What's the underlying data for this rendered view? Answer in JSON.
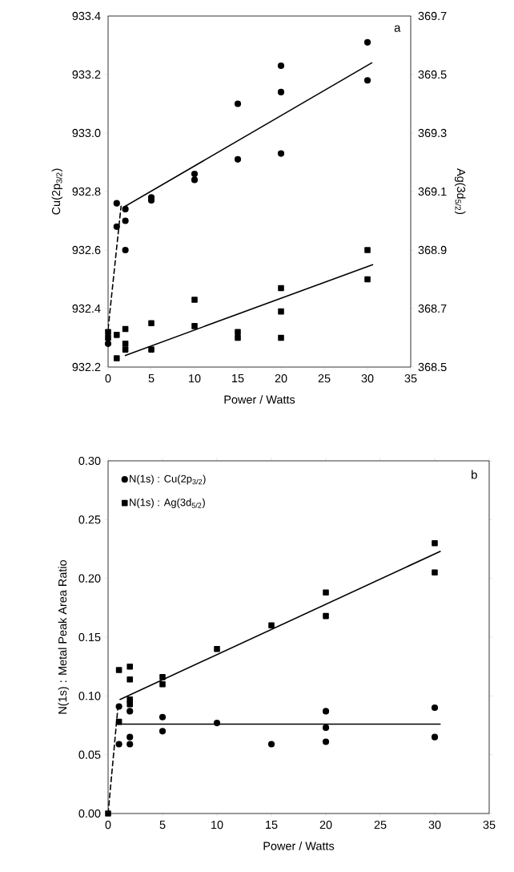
{
  "chart_data": [
    {
      "type": "scatter",
      "xlabel": "Power / Watts",
      "ylabel": "Cu(2p$_{3/2}$)",
      "y2label": "Ag(3d$_{5/2}$)",
      "annotations": [
        "a"
      ],
      "xlim": [
        0,
        35
      ],
      "xticks": [
        0,
        5,
        10,
        15,
        20,
        25,
        30,
        35
      ],
      "ylim": [
        932.2,
        933.4
      ],
      "yticks": [
        {
          "value": 932.2,
          "label": "932.2"
        },
        {
          "value": 932.4,
          "label": "932.4"
        },
        {
          "value": 932.6,
          "label": "932.6"
        },
        {
          "value": 932.8,
          "label": "932.8"
        },
        {
          "value": 933.0,
          "label": "933.0"
        },
        {
          "value": 933.2,
          "label": "933.2"
        },
        {
          "value": 933.4,
          "label": "933.4"
        }
      ],
      "y2lim": [
        368.5,
        369.7
      ],
      "y2ticks": [
        {
          "value": 368.5,
          "label": "368.5"
        },
        {
          "value": 368.7,
          "label": "368.7"
        },
        {
          "value": 368.9,
          "label": "368.9"
        },
        {
          "value": 369.1,
          "label": "369.1"
        },
        {
          "value": 369.3,
          "label": "369.3"
        },
        {
          "value": 369.5,
          "label": "369.5"
        },
        {
          "value": 369.7,
          "label": "369.7"
        }
      ],
      "series": [
        {
          "marker": "circle",
          "color": "#000000",
          "x": [
            0,
            1,
            1,
            2,
            2,
            2,
            5,
            5,
            10,
            10,
            15,
            15,
            20,
            20,
            20,
            30,
            30
          ],
          "values": [
            932.28,
            932.76,
            932.68,
            932.74,
            932.7,
            932.6,
            932.78,
            932.77,
            932.86,
            932.84,
            933.1,
            932.91,
            933.23,
            933.14,
            932.93,
            933.31,
            933.18
          ]
        },
        {
          "marker": "square",
          "axis": "y2",
          "color": "#000000",
          "x": [
            0,
            0,
            1,
            1,
            2,
            2,
            2,
            5,
            5,
            10,
            10,
            15,
            15,
            20,
            20,
            20,
            30,
            30
          ],
          "values": [
            368.62,
            368.6,
            368.61,
            368.53,
            368.63,
            368.58,
            368.56,
            368.65,
            368.56,
            368.73,
            368.64,
            368.62,
            368.6,
            368.77,
            368.69,
            368.6,
            368.9,
            368.8
          ]
        },
        {
          "type": "line",
          "line_style": "solid",
          "color": "#000000",
          "x": [
            2,
            30.5
          ],
          "values": [
            932.75,
            933.24
          ]
        },
        {
          "type": "line",
          "line_style": "dashed",
          "color": "#000000",
          "x": [
            0,
            1.5
          ],
          "values": [
            932.33,
            932.75
          ]
        },
        {
          "type": "line",
          "line_style": "solid",
          "axis": "y2",
          "color": "#000000",
          "x": [
            2,
            30.6
          ],
          "values": [
            368.54,
            368.85
          ]
        }
      ]
    },
    {
      "type": "scatter",
      "xlabel": "Power / Watts",
      "ylabel": "N(1s) : Metal Peak Area Ratio",
      "annotations": [
        "b"
      ],
      "legend": "top left",
      "xlim": [
        0,
        35
      ],
      "xticks": [
        0,
        5,
        10,
        15,
        20,
        25,
        30,
        35
      ],
      "ylim": [
        0,
        0.3
      ],
      "yticks": [
        {
          "value": 0,
          "label": "0.00"
        },
        {
          "value": 0.05,
          "label": "0.05"
        },
        {
          "value": 0.1,
          "label": "0.10"
        },
        {
          "value": 0.15,
          "label": "0.15"
        },
        {
          "value": 0.2,
          "label": "0.20"
        },
        {
          "value": 0.25,
          "label": "0.25"
        },
        {
          "value": 0.3,
          "label": "0.30"
        }
      ],
      "series": [
        {
          "name": "N(1s) : Cu(2p$_{3/2}$)",
          "marker": "circle",
          "color": "#000000",
          "x": [
            1,
            1,
            2,
            2,
            2,
            5,
            5,
            10,
            15,
            20,
            20,
            20,
            30,
            30
          ],
          "values": [
            0.091,
            0.059,
            0.087,
            0.065,
            0.059,
            0.082,
            0.07,
            0.077,
            0.059,
            0.087,
            0.073,
            0.061,
            0.09,
            0.065
          ]
        },
        {
          "name": "N(1s) : Ag(3d$_{5/2}$)",
          "marker": "square",
          "color": "#000000",
          "x": [
            0,
            1,
            1,
            2,
            2,
            2,
            2,
            5,
            5,
            10,
            15,
            20,
            20,
            30,
            30
          ],
          "values": [
            0,
            0.122,
            0.078,
            0.125,
            0.114,
            0.097,
            0.093,
            0.116,
            0.11,
            0.14,
            0.16,
            0.188,
            0.168,
            0.23,
            0.205
          ]
        },
        {
          "type": "line",
          "line_style": "solid",
          "color": "#000000",
          "x": [
            1.1,
            30.5
          ],
          "values": [
            0.097,
            0.223
          ]
        },
        {
          "type": "line",
          "line_style": "solid",
          "color": "#000000",
          "x": [
            0.9,
            30.5
          ],
          "values": [
            0.076,
            0.076
          ]
        },
        {
          "type": "line",
          "line_style": "dashed",
          "color": "#000000",
          "x": [
            0,
            0.9
          ],
          "values": [
            0,
            0.09
          ]
        }
      ]
    }
  ]
}
